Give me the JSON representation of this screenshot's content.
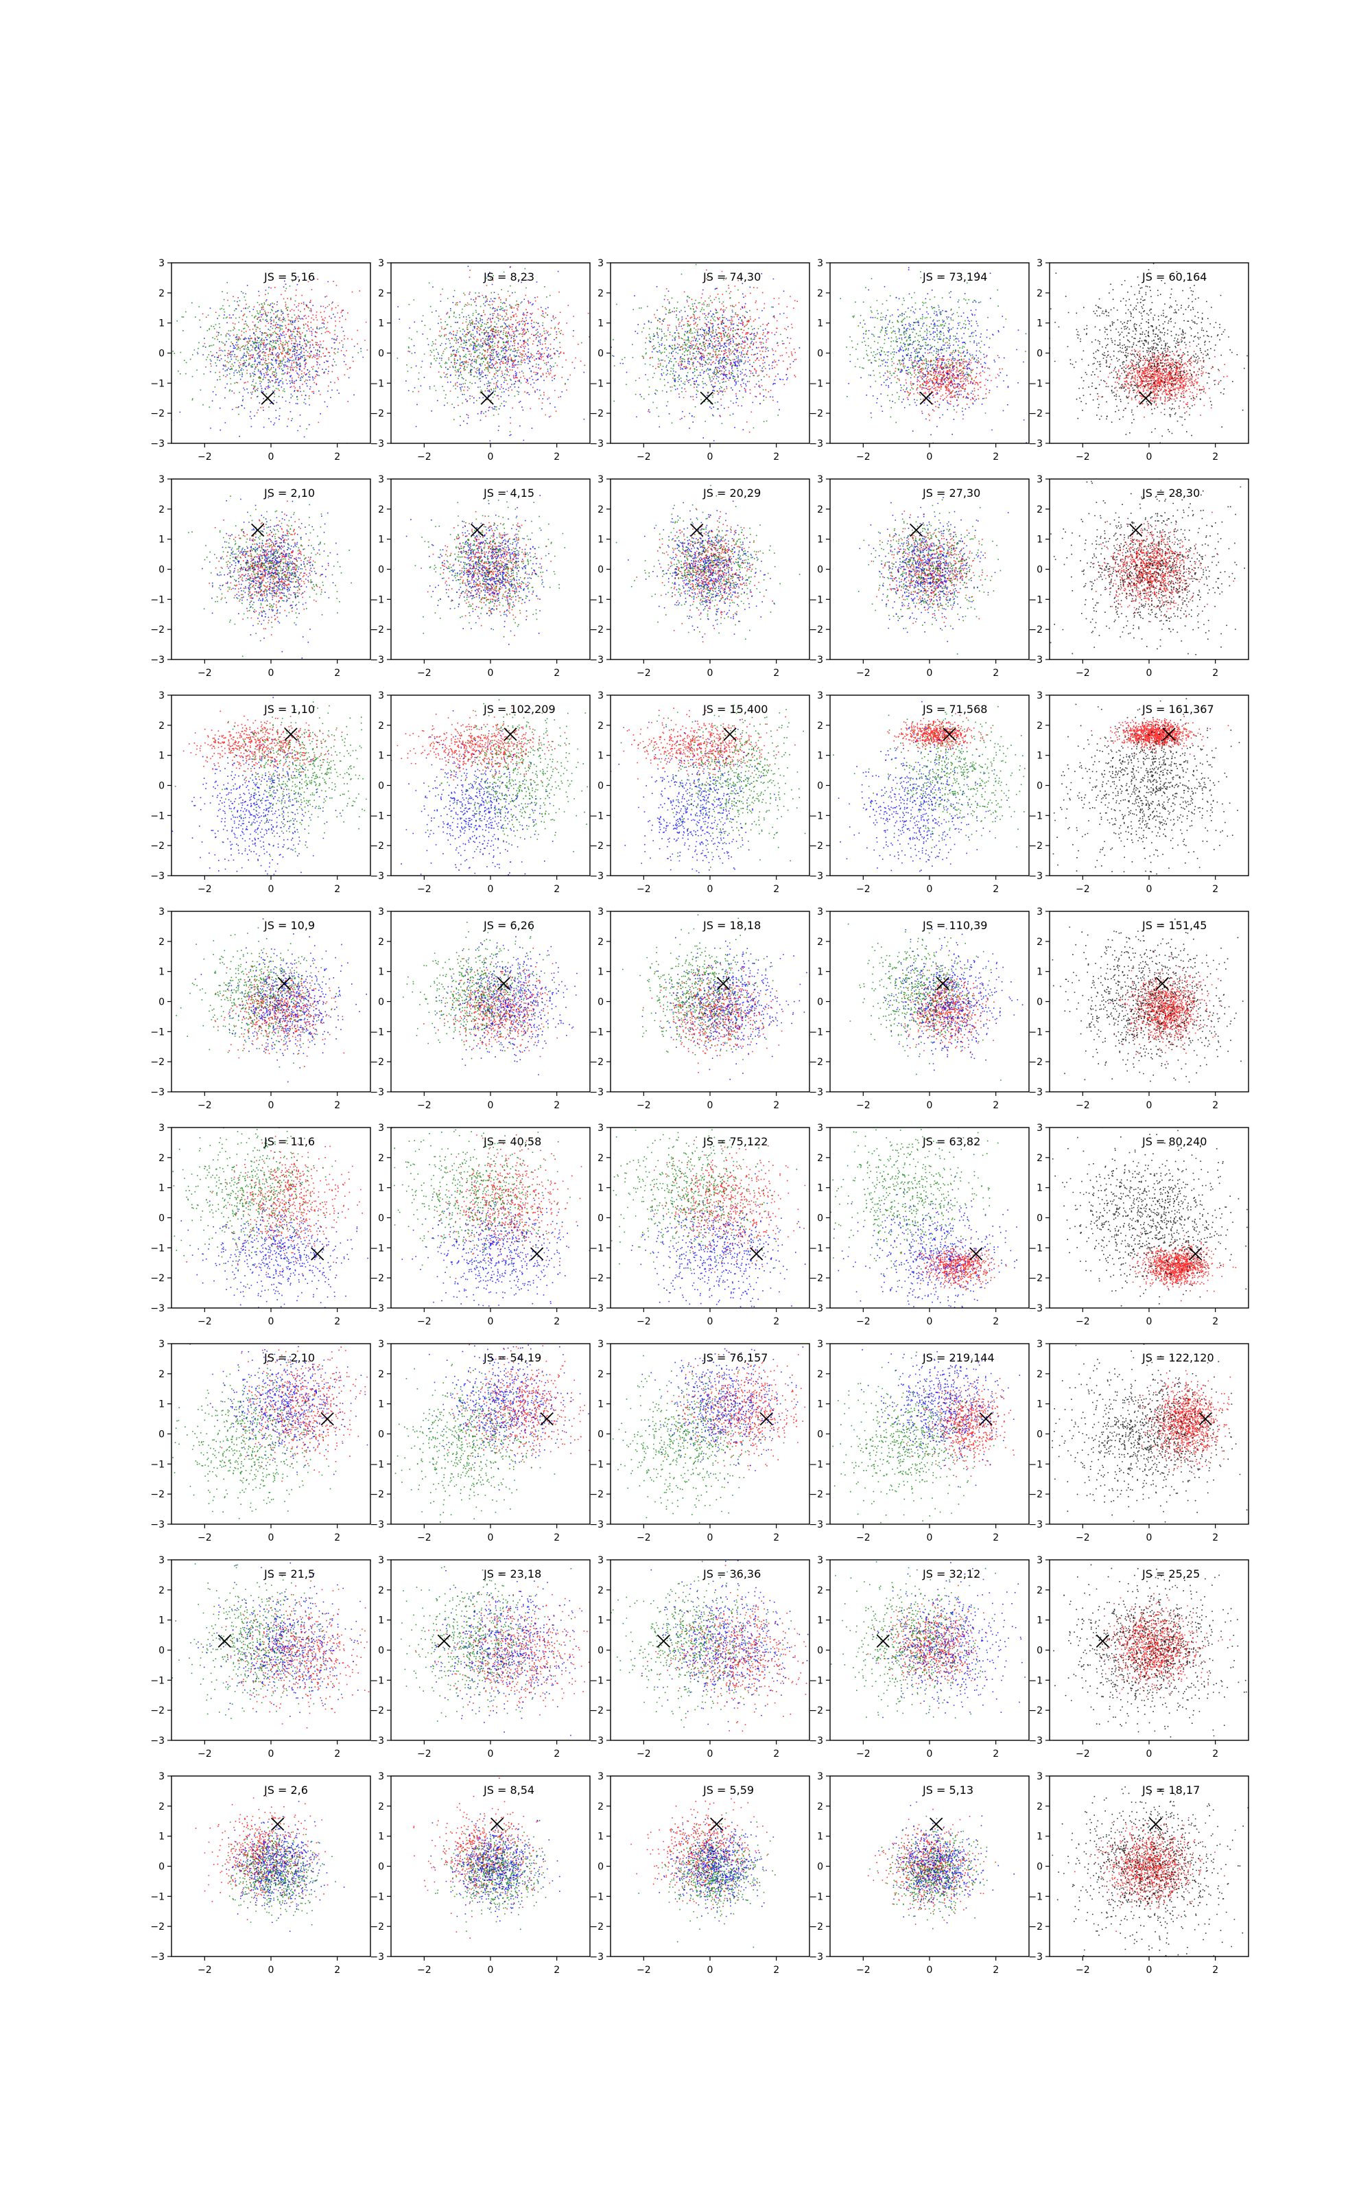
{
  "chart_data": {
    "type": "scatter",
    "layout": {
      "rows": 8,
      "cols": 5
    },
    "xlim": [
      -3,
      3
    ],
    "ylim": [
      -3,
      3
    ],
    "xticks": [
      -2,
      0,
      2
    ],
    "yticks": [
      -3,
      -2,
      -1,
      0,
      1,
      2,
      3
    ],
    "grid": false,
    "colors": {
      "red": "#ff0000",
      "green": "#008000",
      "blue": "#0000ff",
      "black": "#000000",
      "marker": "#000000"
    },
    "marker_symbol": "×",
    "annotation_prefix": "JS = ",
    "annotations": [
      [
        "5,16",
        "8,23",
        "74,30",
        "73,194",
        "60,164"
      ],
      [
        "2,10",
        "4,15",
        "20,29",
        "27,30",
        "28,30"
      ],
      [
        "1,10",
        "102,209",
        "15,400",
        "71,568",
        "161,367"
      ],
      [
        "10,9",
        "6,26",
        "18,18",
        "110,39",
        "151,45"
      ],
      [
        "11,6",
        "40,58",
        "75,122",
        "63,82",
        "80,240"
      ],
      [
        "2,10",
        "54,19",
        "76,157",
        "219,144",
        "122,120"
      ],
      [
        "21,5",
        "23,18",
        "36,36",
        "32,12",
        "25,25"
      ],
      [
        "2,6",
        "8,54",
        "5,59",
        "5,13",
        "18,17"
      ]
    ],
    "marker_positions": [
      [
        -0.1,
        -1.5
      ],
      [
        -0.4,
        1.3
      ],
      [
        0.6,
        1.7
      ],
      [
        0.4,
        0.6
      ],
      [
        1.4,
        -1.2
      ],
      [
        1.7,
        0.5
      ],
      [
        -1.4,
        0.3
      ],
      [
        0.2,
        1.4
      ]
    ],
    "row_clusters": [
      [
        {
          "color": "red",
          "mean": [
            0.5,
            0.3
          ],
          "sd": [
            1.0,
            0.9
          ]
        },
        {
          "color": "green",
          "mean": [
            -0.3,
            0.2
          ],
          "sd": [
            1.0,
            0.9
          ]
        },
        {
          "color": "blue",
          "mean": [
            0.2,
            -0.1
          ],
          "sd": [
            1.0,
            1.0
          ]
        },
        {
          "color": "target",
          "mean": [
            0.4,
            -0.8
          ],
          "sd": [
            0.6,
            0.4
          ]
        }
      ],
      [
        {
          "color": "red",
          "mean": [
            0.0,
            0.0
          ],
          "sd": [
            0.6,
            0.7
          ]
        },
        {
          "color": "green",
          "mean": [
            0.0,
            0.1
          ],
          "sd": [
            0.8,
            0.8
          ]
        },
        {
          "color": "blue",
          "mean": [
            0.0,
            0.0
          ],
          "sd": [
            0.7,
            0.8
          ]
        },
        {
          "color": "target",
          "mean": [
            0.0,
            0.0
          ],
          "sd": [
            0.6,
            0.6
          ]
        }
      ],
      [
        {
          "color": "red",
          "mean": [
            -0.3,
            1.3
          ],
          "sd": [
            0.9,
            0.4
          ]
        },
        {
          "color": "green",
          "mean": [
            0.8,
            0.3
          ],
          "sd": [
            0.9,
            1.0
          ]
        },
        {
          "color": "blue",
          "mean": [
            -0.4,
            -0.8
          ],
          "sd": [
            0.8,
            1.0
          ]
        },
        {
          "color": "target",
          "mean": [
            0.2,
            1.7
          ],
          "sd": [
            0.5,
            0.2
          ]
        }
      ],
      [
        {
          "color": "red",
          "mean": [
            0.2,
            -0.3
          ],
          "sd": [
            0.7,
            0.6
          ]
        },
        {
          "color": "green",
          "mean": [
            -0.3,
            0.3
          ],
          "sd": [
            0.8,
            0.8
          ]
        },
        {
          "color": "blue",
          "mean": [
            0.6,
            0.0
          ],
          "sd": [
            0.8,
            0.8
          ]
        },
        {
          "color": "target",
          "mean": [
            0.5,
            -0.3
          ],
          "sd": [
            0.5,
            0.5
          ]
        }
      ],
      [
        {
          "color": "red",
          "mean": [
            0.5,
            0.5
          ],
          "sd": [
            0.8,
            0.8
          ]
        },
        {
          "color": "green",
          "mean": [
            -0.6,
            0.8
          ],
          "sd": [
            1.0,
            1.0
          ]
        },
        {
          "color": "blue",
          "mean": [
            0.2,
            -1.2
          ],
          "sd": [
            1.0,
            0.8
          ]
        },
        {
          "color": "target",
          "mean": [
            0.8,
            -1.6
          ],
          "sd": [
            0.5,
            0.3
          ]
        }
      ],
      [
        {
          "color": "red",
          "mean": [
            0.9,
            0.8
          ],
          "sd": [
            0.8,
            0.8
          ]
        },
        {
          "color": "green",
          "mean": [
            -0.7,
            -0.3
          ],
          "sd": [
            0.9,
            1.0
          ]
        },
        {
          "color": "blue",
          "mean": [
            0.4,
            1.0
          ],
          "sd": [
            0.8,
            0.8
          ]
        },
        {
          "color": "target",
          "mean": [
            1.1,
            0.4
          ],
          "sd": [
            0.5,
            0.6
          ]
        }
      ],
      [
        {
          "color": "red",
          "mean": [
            0.8,
            -0.1
          ],
          "sd": [
            0.9,
            0.8
          ]
        },
        {
          "color": "green",
          "mean": [
            -0.5,
            0.3
          ],
          "sd": [
            0.9,
            1.0
          ]
        },
        {
          "color": "blue",
          "mean": [
            0.5,
            0.1
          ],
          "sd": [
            0.9,
            0.9
          ]
        },
        {
          "color": "target",
          "mean": [
            0.1,
            0.1
          ],
          "sd": [
            0.6,
            0.6
          ]
        }
      ],
      [
        {
          "color": "red",
          "mean": [
            -0.2,
            0.4
          ],
          "sd": [
            0.7,
            0.7
          ]
        },
        {
          "color": "green",
          "mean": [
            0.1,
            -0.2
          ],
          "sd": [
            0.6,
            0.6
          ]
        },
        {
          "color": "blue",
          "mean": [
            0.2,
            0.0
          ],
          "sd": [
            0.6,
            0.6
          ]
        },
        {
          "color": "target",
          "mean": [
            0.0,
            0.0
          ],
          "sd": [
            0.6,
            0.6
          ]
        }
      ]
    ],
    "columns": [
      {
        "colors": [
          "red",
          "green",
          "blue"
        ],
        "n": 1700
      },
      {
        "colors": [
          "red",
          "green",
          "blue"
        ],
        "n": 1700
      },
      {
        "colors": [
          "red",
          "green",
          "blue"
        ],
        "n": 1700
      },
      {
        "colors": [
          "target",
          "green",
          "blue"
        ],
        "n": 1700
      },
      {
        "colors": [
          "target",
          "black"
        ],
        "n": 2000
      }
    ]
  }
}
